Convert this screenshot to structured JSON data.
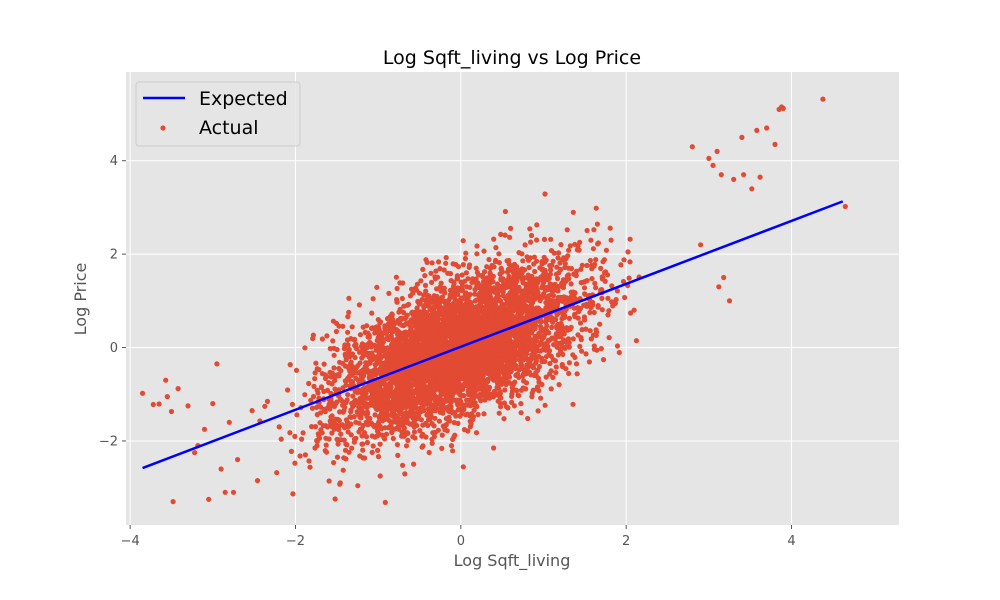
{
  "chart_data": {
    "type": "scatter",
    "title": "Log Sqft_living vs Log Price",
    "xlabel": "Log Sqft_living",
    "ylabel": "Log Price",
    "xlim": [
      -4.05,
      5.3
    ],
    "ylim": [
      -3.8,
      5.9
    ],
    "x_ticks": [
      -4,
      -2,
      0,
      2,
      4
    ],
    "y_ticks": [
      -2,
      0,
      2,
      4
    ],
    "x_tick_labels": [
      "−4",
      "−2",
      "0",
      "2",
      "4"
    ],
    "y_tick_labels": [
      "−2",
      "0",
      "2",
      "4"
    ],
    "grid": true,
    "legend_position": "upper-left",
    "colors": {
      "axes_background": "#e5e5e5",
      "grid": "#ffffff",
      "expected_line": "#0000ff",
      "actual_points": "#e24a33"
    },
    "series": [
      {
        "name": "Expected",
        "kind": "line",
        "x": [
          -3.85,
          4.62
        ],
        "y": [
          -2.58,
          3.13
        ]
      },
      {
        "name": "Actual",
        "kind": "scatter",
        "trend": {
          "slope": 0.675,
          "intercept": 0.0,
          "residual_sd": 0.72
        },
        "x_core_range": [
          -2.6,
          2.2
        ],
        "notable_points": [
          {
            "x": -3.85,
            "y": -0.98
          },
          {
            "x": -3.72,
            "y": -1.22
          },
          {
            "x": -3.65,
            "y": -1.21
          },
          {
            "x": -3.57,
            "y": -0.7
          },
          {
            "x": -3.55,
            "y": -1.05
          },
          {
            "x": -3.5,
            "y": -1.37
          },
          {
            "x": -3.48,
            "y": -3.3
          },
          {
            "x": -3.42,
            "y": -0.88
          },
          {
            "x": -3.3,
            "y": -1.25
          },
          {
            "x": -3.22,
            "y": -2.25
          },
          {
            "x": -3.18,
            "y": -2.1
          },
          {
            "x": -3.1,
            "y": -1.75
          },
          {
            "x": -3.05,
            "y": -3.25
          },
          {
            "x": -3.0,
            "y": -1.2
          },
          {
            "x": -2.95,
            "y": -0.35
          },
          {
            "x": -2.9,
            "y": -2.6
          },
          {
            "x": -2.85,
            "y": -3.1
          },
          {
            "x": -2.8,
            "y": -1.6
          },
          {
            "x": -2.75,
            "y": -3.1
          },
          {
            "x": -2.7,
            "y": -2.4
          },
          {
            "x": 2.8,
            "y": 4.3
          },
          {
            "x": 2.9,
            "y": 2.2
          },
          {
            "x": 3.0,
            "y": 4.05
          },
          {
            "x": 3.05,
            "y": 3.9
          },
          {
            "x": 3.1,
            "y": 4.2
          },
          {
            "x": 3.12,
            "y": 1.3
          },
          {
            "x": 3.15,
            "y": 3.7
          },
          {
            "x": 3.18,
            "y": 1.5
          },
          {
            "x": 3.25,
            "y": 1.0
          },
          {
            "x": 3.3,
            "y": 3.6
          },
          {
            "x": 3.4,
            "y": 4.5
          },
          {
            "x": 3.42,
            "y": 3.7
          },
          {
            "x": 3.52,
            "y": 3.4
          },
          {
            "x": 3.58,
            "y": 4.65
          },
          {
            "x": 3.62,
            "y": 3.65
          },
          {
            "x": 3.7,
            "y": 4.7
          },
          {
            "x": 3.8,
            "y": 4.35
          },
          {
            "x": 3.85,
            "y": 5.1
          },
          {
            "x": 3.88,
            "y": 5.15
          },
          {
            "x": 3.9,
            "y": 5.12
          },
          {
            "x": 4.38,
            "y": 5.32
          },
          {
            "x": 4.65,
            "y": 3.02
          }
        ]
      }
    ]
  }
}
